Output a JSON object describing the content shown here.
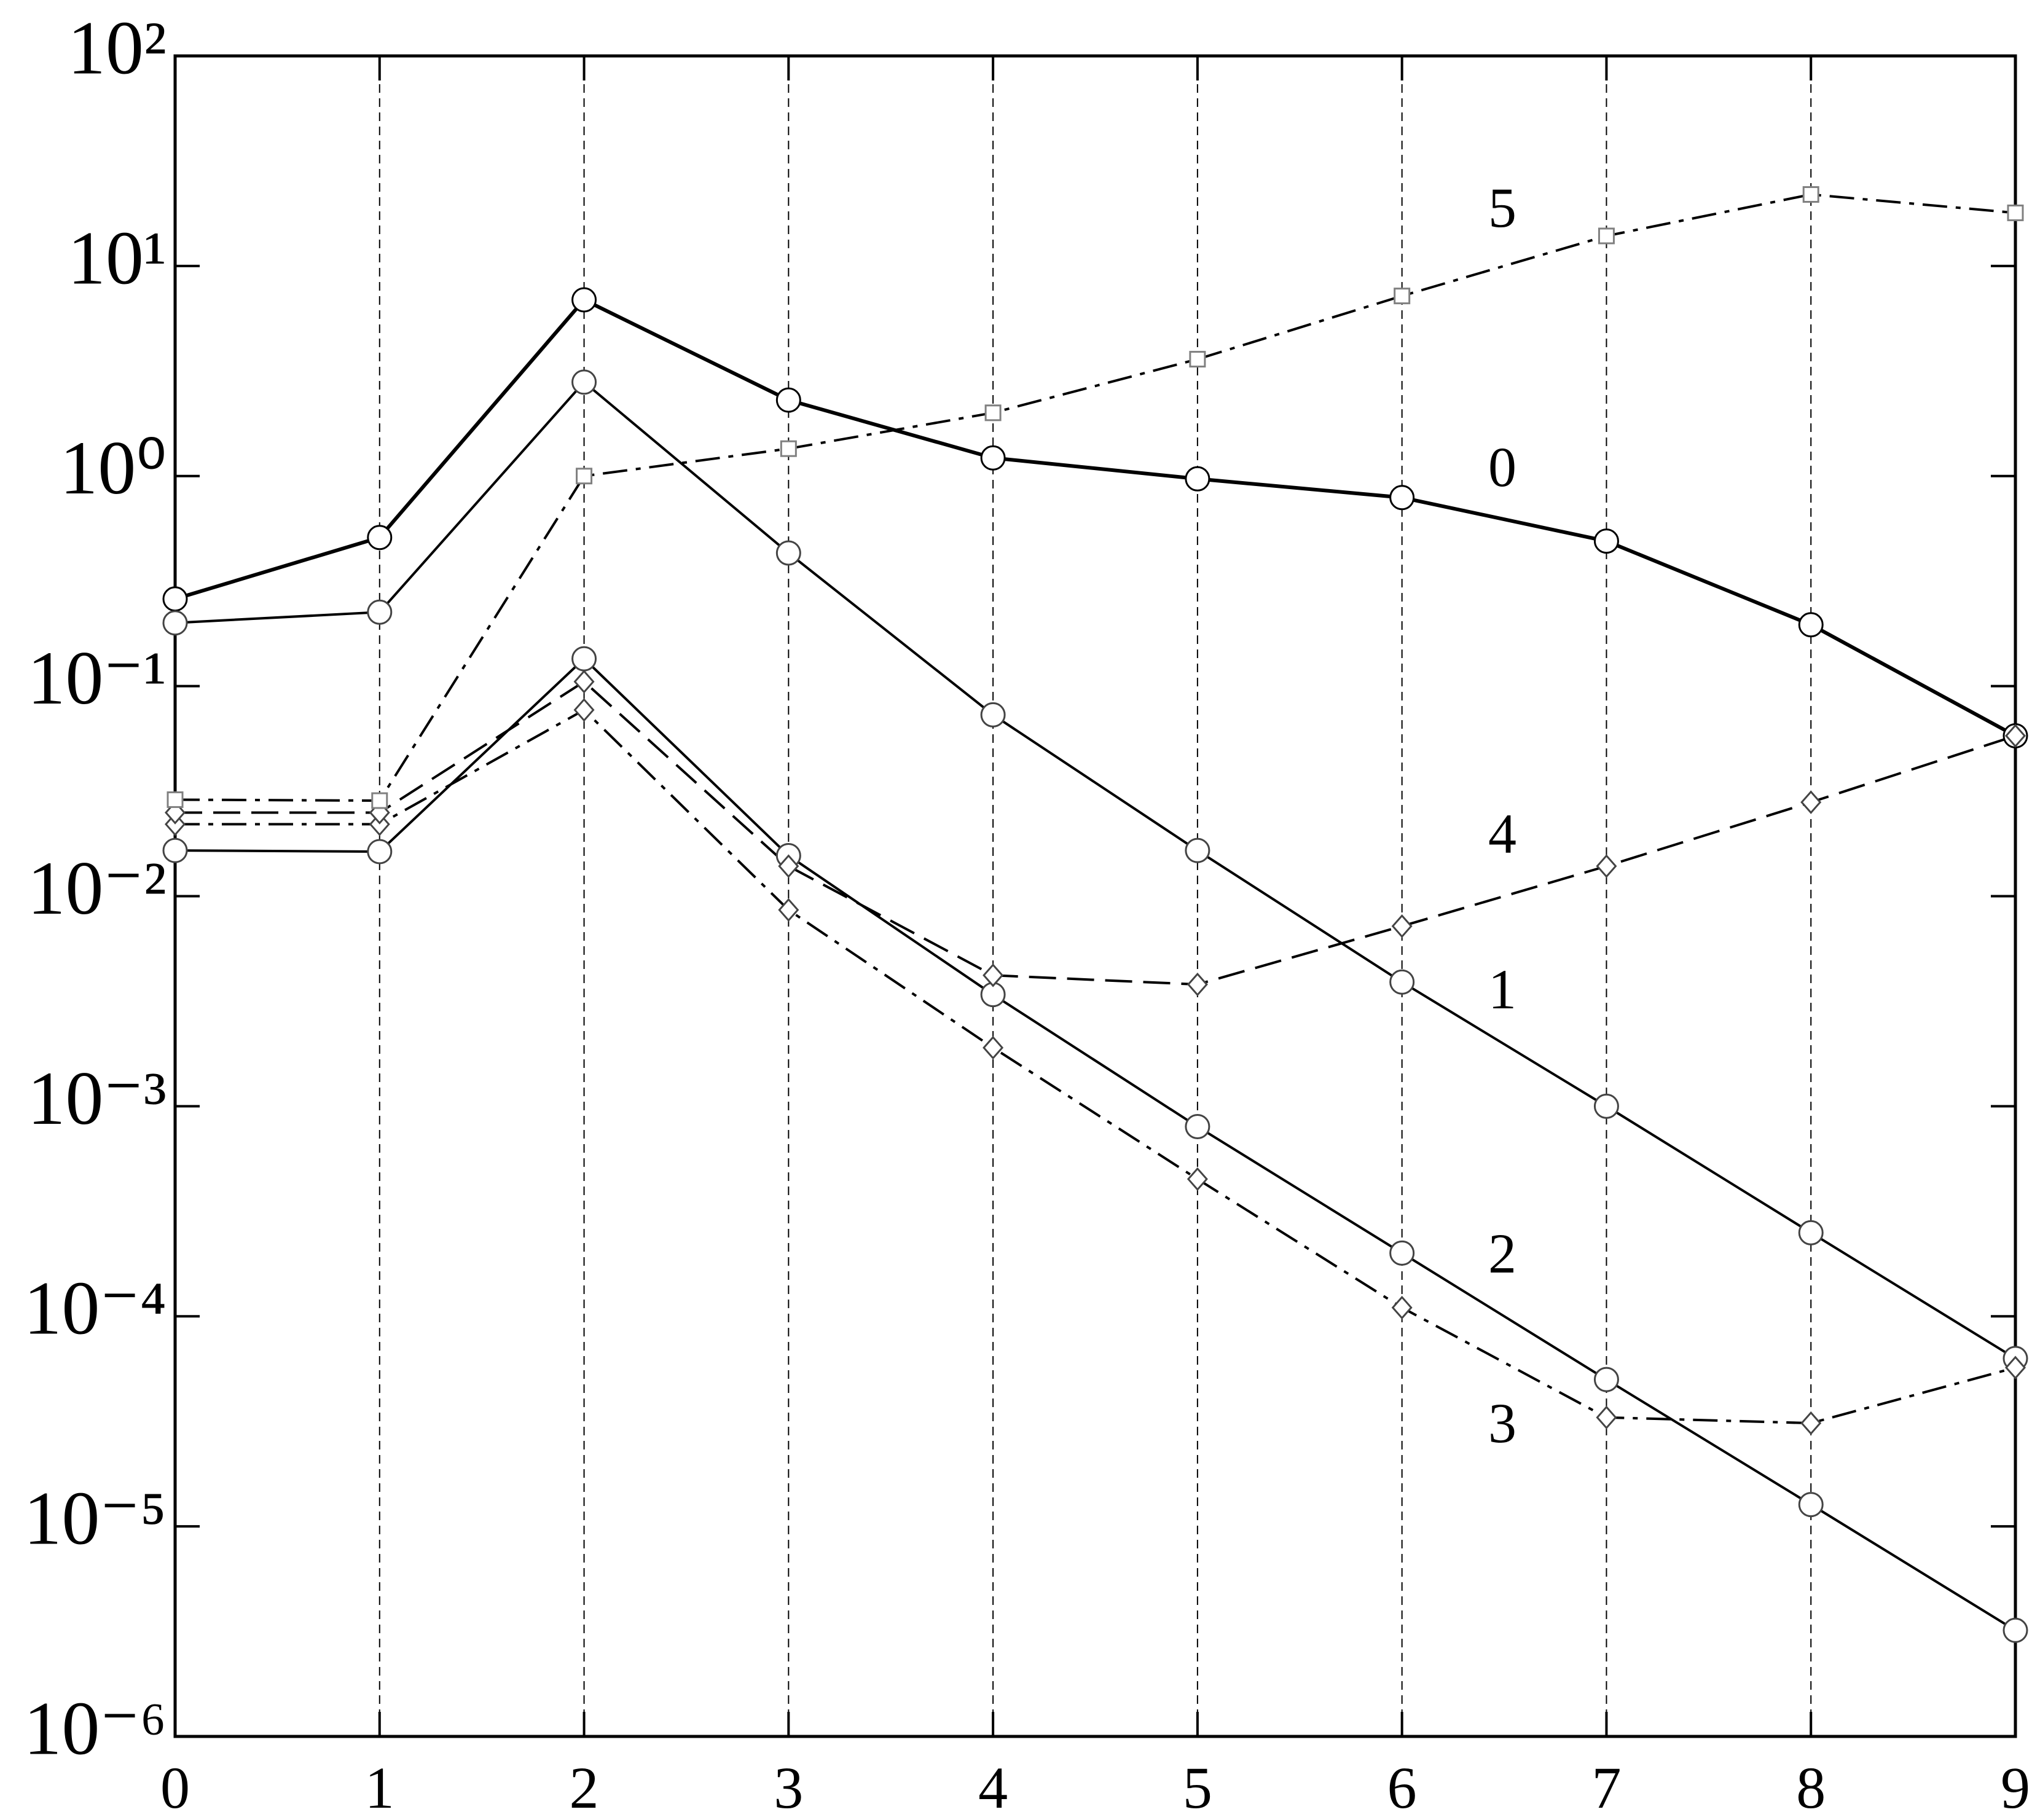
{
  "chart_data": {
    "type": "line",
    "log_y": true,
    "grid": "x",
    "x": [
      0,
      1,
      2,
      3,
      4,
      5,
      6,
      7,
      8,
      9
    ],
    "xlim": [
      0,
      9
    ],
    "xticks": [
      0,
      1,
      2,
      3,
      4,
      5,
      6,
      7,
      8,
      9
    ],
    "ylim": [
      1e-06,
      100
    ],
    "yticks": [
      {
        "value": 1e-06,
        "label": "10⁻⁶"
      },
      {
        "value": 1e-05,
        "label": "10⁻⁵"
      },
      {
        "value": 0.0001,
        "label": "10⁻⁴"
      },
      {
        "value": 0.001,
        "label": "10⁻³"
      },
      {
        "value": 0.01,
        "label": "10⁻²"
      },
      {
        "value": 0.1,
        "label": "10⁻¹"
      },
      {
        "value": 1,
        "label": "10⁰"
      },
      {
        "value": 10,
        "label": "10¹"
      },
      {
        "value": 100,
        "label": "10²"
      }
    ],
    "series": [
      {
        "name": "0",
        "color": "#000000",
        "marker_color": "#000000",
        "marker": "circle",
        "line_style": "solid",
        "line_width": "thick",
        "values": [
          0.26,
          0.51,
          6.9,
          2.3,
          1.22,
          0.97,
          0.79,
          0.49,
          0.196,
          0.058
        ]
      },
      {
        "name": "1",
        "color": "#000000",
        "marker_color": "#444444",
        "marker": "circle",
        "line_style": "solid",
        "line_width": "normal",
        "values": [
          0.2,
          0.225,
          2.8,
          0.43,
          0.073,
          0.0165,
          0.0039,
          0.001,
          0.00025,
          6.3e-05
        ]
      },
      {
        "name": "2",
        "color": "#000000",
        "marker_color": "#444444",
        "marker": "circle",
        "line_style": "solid",
        "line_width": "normal",
        "values": [
          0.0165,
          0.0163,
          0.135,
          0.0156,
          0.0034,
          0.0008,
          0.0002,
          5e-05,
          1.27e-05,
          3.2e-06
        ]
      },
      {
        "name": "3",
        "color": "#000000",
        "marker_color": "#444444",
        "marker": "diamond",
        "line_style": "dashdot",
        "line_width": "normal",
        "values": [
          0.022,
          0.022,
          0.077,
          0.0086,
          0.0019,
          0.00045,
          0.00011,
          3.3e-05,
          3.1e-05,
          5.7e-05
        ]
      },
      {
        "name": "4",
        "color": "#000000",
        "marker_color": "#444444",
        "marker": "diamond",
        "line_style": "dashed",
        "line_width": "normal",
        "values": [
          0.025,
          0.025,
          0.105,
          0.0139,
          0.0042,
          0.0038,
          0.0072,
          0.0139,
          0.028,
          0.058
        ]
      },
      {
        "name": "5",
        "color": "#000000",
        "marker_color": "#808080",
        "marker": "square",
        "line_style": "dashdot",
        "line_width": "normal",
        "values": [
          0.0288,
          0.0285,
          1.0,
          1.35,
          2.0,
          3.6,
          7.2,
          13.9,
          21.9,
          17.9
        ]
      }
    ]
  }
}
